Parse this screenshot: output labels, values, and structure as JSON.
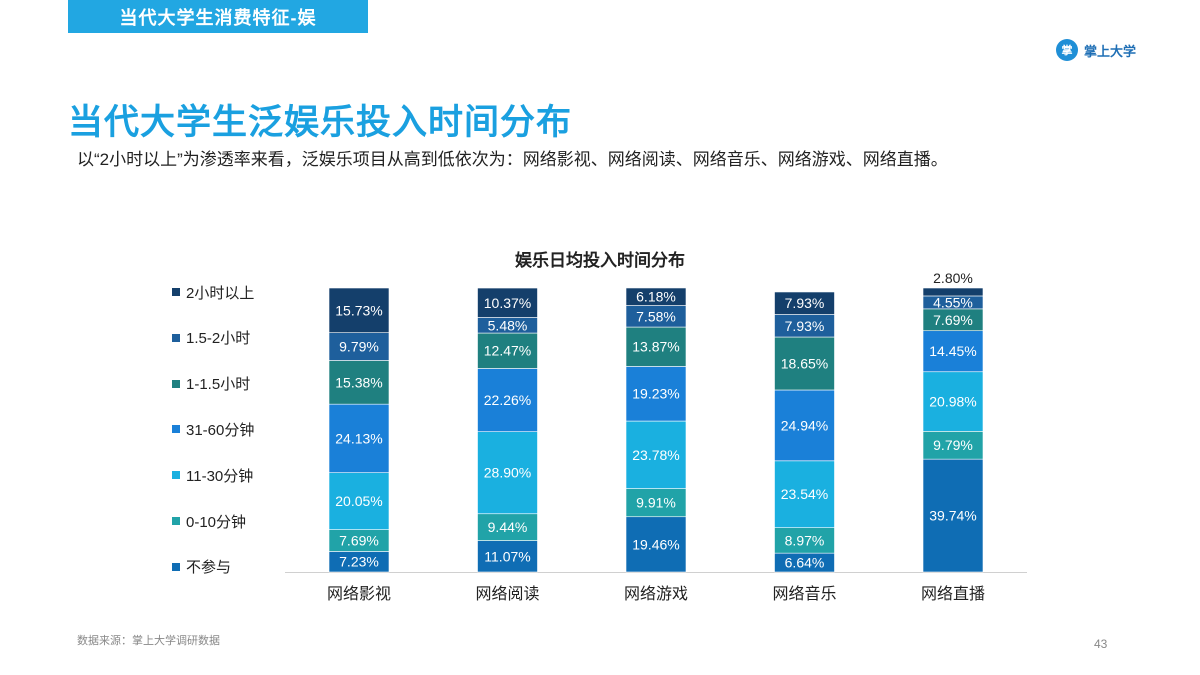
{
  "header": {
    "section_label": "当代大学生消费特征-娱",
    "brand_icon_text": "掌",
    "brand_name": "掌上大学"
  },
  "page": {
    "title": "当代大学生泛娱乐投入时间分布",
    "subtitle": "以“2小时以上”为渗透率来看，泛娱乐项目从高到低依次为：网络影视、网络阅读、网络音乐、网络游戏、网络直播。",
    "source": "数据来源：掌上大学调研数据",
    "page_number": "43"
  },
  "chart_data": {
    "type": "bar",
    "stacked": true,
    "title": "娱乐日均投入时间分布",
    "xlabel": "",
    "ylabel": "",
    "categories": [
      "网络影视",
      "网络阅读",
      "网络游戏",
      "网络音乐",
      "网络直播"
    ],
    "series": [
      {
        "name": "不参与",
        "color": "#0f6db4",
        "values": [
          7.23,
          11.07,
          19.46,
          6.64,
          39.74
        ]
      },
      {
        "name": "0-10分钟",
        "color": "#21a3a8",
        "values": [
          7.69,
          9.44,
          9.91,
          8.97,
          9.79
        ]
      },
      {
        "name": "11-30分钟",
        "color": "#1ab0e0",
        "values": [
          20.05,
          28.9,
          23.78,
          23.54,
          20.98
        ]
      },
      {
        "name": "31-60分钟",
        "color": "#1a80d8",
        "values": [
          24.13,
          22.26,
          19.23,
          24.94,
          14.45
        ]
      },
      {
        "name": "1-1.5小时",
        "color": "#1f8080",
        "values": [
          15.38,
          12.47,
          13.87,
          18.65,
          7.69
        ]
      },
      {
        "name": "1.5-2小时",
        "color": "#1e5f9c",
        "values": [
          9.79,
          5.48,
          7.58,
          7.93,
          4.55
        ]
      },
      {
        "name": "2小时以上",
        "color": "#143f6b",
        "values": [
          15.73,
          10.37,
          6.18,
          7.93,
          2.8
        ]
      }
    ],
    "ylim": [
      0,
      100
    ],
    "grid": false,
    "legend_position": "left"
  }
}
